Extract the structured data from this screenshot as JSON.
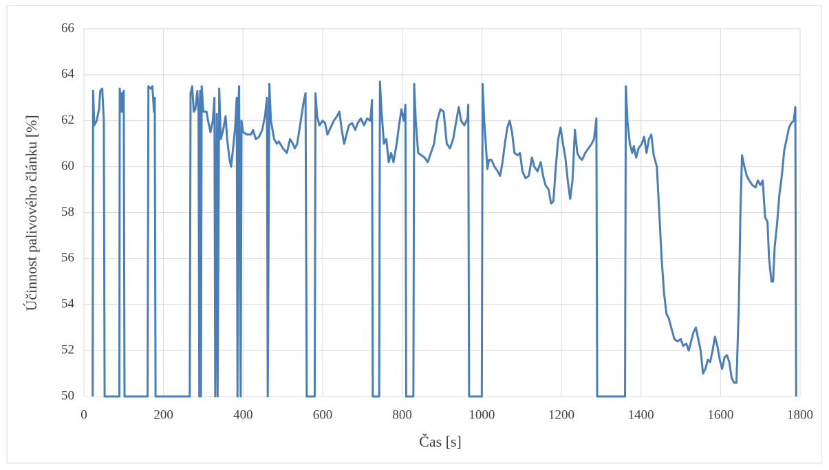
{
  "chart_data": {
    "type": "line",
    "xlabel": "Čas [s]",
    "ylabel": "Účinnost palivového článku [%]",
    "xlim": [
      0,
      1800
    ],
    "xticks": [
      0,
      200,
      400,
      600,
      800,
      1000,
      1200,
      1400,
      1600,
      1800
    ],
    "ylim": [
      50,
      66
    ],
    "yticks": [
      50,
      52,
      54,
      56,
      58,
      60,
      62,
      64,
      66
    ],
    "grid": true,
    "series": [
      {
        "color": "#4a7ebb",
        "x": [
          22,
          23,
          26,
          32,
          38,
          41,
          46,
          50,
          52,
          89,
          90,
          94,
          96,
          98,
          100,
          102,
          160,
          162,
          168,
          172,
          176,
          178,
          180,
          266,
          268,
          272,
          276,
          280,
          285,
          288,
          290,
          292,
          294,
          296,
          300,
          308,
          312,
          318,
          324,
          328,
          330,
          334,
          336,
          340,
          344,
          350,
          356,
          360,
          366,
          370,
          376,
          380,
          384,
          386,
          388,
          390,
          394,
          396,
          400,
          410,
          420,
          425,
          432,
          440,
          448,
          455,
          460,
          462,
          466,
          470,
          478,
          485,
          490,
          500,
          510,
          518,
          525,
          530,
          536,
          545,
          552,
          557,
          560,
          580,
          582,
          586,
          592,
          600,
          606,
          612,
          620,
          628,
          636,
          642,
          648,
          654,
          660,
          666,
          674,
          682,
          688,
          696,
          704,
          712,
          720,
          724,
          726,
          742,
          744,
          748,
          754,
          760,
          766,
          772,
          778,
          786,
          792,
          798,
          804,
          808,
          810,
          828,
          830,
          834,
          840,
          848,
          856,
          864,
          872,
          880,
          888,
          896,
          904,
          912,
          920,
          928,
          936,
          942,
          948,
          956,
          964,
          966,
          968,
          1000,
          1002,
          1006,
          1010,
          1014,
          1018,
          1024,
          1032,
          1040,
          1046,
          1052,
          1058,
          1064,
          1070,
          1076,
          1082,
          1090,
          1096,
          1102,
          1110,
          1118,
          1126,
          1132,
          1140,
          1148,
          1154,
          1160,
          1168,
          1174,
          1180,
          1186,
          1192,
          1198,
          1204,
          1210,
          1216,
          1222,
          1228,
          1234,
          1240,
          1246,
          1252,
          1260,
          1268,
          1276,
          1282,
          1288,
          1290,
          1360,
          1362,
          1366,
          1372,
          1378,
          1382,
          1388,
          1394,
          1402,
          1408,
          1414,
          1420,
          1426,
          1432,
          1440,
          1446,
          1452,
          1458,
          1464,
          1470,
          1476,
          1484,
          1492,
          1500,
          1506,
          1514,
          1520,
          1526,
          1532,
          1538,
          1544,
          1550,
          1556,
          1562,
          1568,
          1574,
          1580,
          1586,
          1592,
          1598,
          1604,
          1610,
          1616,
          1622,
          1628,
          1634,
          1640,
          1646,
          1650,
          1654,
          1660,
          1666,
          1672,
          1680,
          1688,
          1694,
          1700,
          1706,
          1712,
          1718,
          1722,
          1728,
          1732,
          1736,
          1742,
          1748,
          1754,
          1760,
          1766,
          1772,
          1778,
          1784,
          1788,
          1790
        ],
        "values": [
          50,
          63.3,
          61.8,
          62,
          62.5,
          63.3,
          63.4,
          62,
          50,
          50,
          63.4,
          62.4,
          63.2,
          62.4,
          63.3,
          50,
          50,
          63.5,
          63.4,
          63.5,
          62.4,
          63,
          50,
          50,
          63.2,
          63.5,
          62.4,
          62.5,
          63.3,
          62.4,
          50,
          63.3,
          50,
          63.5,
          62.4,
          62.4,
          62,
          61.5,
          62,
          63,
          50,
          62.3,
          50,
          63.4,
          61.2,
          61.6,
          62.2,
          61.2,
          60.3,
          60,
          61,
          61.7,
          63,
          50,
          62.5,
          63.5,
          50,
          62,
          61.5,
          61.4,
          61.4,
          61.6,
          61.2,
          61.3,
          61.6,
          62.2,
          63,
          50,
          63.6,
          62,
          61.2,
          61,
          61.1,
          60.8,
          60.6,
          61.2,
          61,
          60.8,
          61,
          62,
          62.8,
          63.2,
          50,
          50,
          63.2,
          62.2,
          61.8,
          62,
          61.9,
          61.4,
          61.7,
          62,
          62.2,
          62.4,
          61.6,
          61,
          61.4,
          61.8,
          61.9,
          61.6,
          61.9,
          62.1,
          61.8,
          62.1,
          62,
          62.9,
          50,
          50,
          63.7,
          62.4,
          61,
          61.2,
          60.2,
          60.6,
          60.2,
          61,
          61.8,
          62.5,
          62,
          62.7,
          50,
          50,
          63.6,
          62,
          60.6,
          60.5,
          60.4,
          60.2,
          60.6,
          61,
          62,
          62.5,
          62.4,
          61,
          60.8,
          61.2,
          62,
          62.6,
          62,
          61.8,
          62.1,
          62.7,
          50,
          50,
          63.6,
          62,
          61,
          59.9,
          60.3,
          60.3,
          60,
          59.8,
          59.6,
          60.2,
          61,
          61.7,
          62,
          61.5,
          60.6,
          60.5,
          60.6,
          59.8,
          59.5,
          59.6,
          60.4,
          60,
          59.8,
          60.2,
          59.6,
          59.2,
          59,
          58.4,
          58.5,
          60,
          61.2,
          61.7,
          61,
          60.4,
          59.4,
          58.6,
          59.4,
          61.6,
          60.6,
          60.4,
          60.3,
          60.6,
          60.8,
          61,
          61.2,
          62.1,
          50,
          50,
          63.5,
          62,
          61,
          60.6,
          60.9,
          60.4,
          60.8,
          61,
          61.3,
          60.6,
          61.2,
          61.4,
          60.5,
          60,
          58,
          56,
          54.5,
          53.6,
          53.4,
          53,
          52.5,
          52.4,
          52.5,
          52.2,
          52.3,
          52,
          52.4,
          52.8,
          53,
          52.5,
          52,
          51,
          51.2,
          51.6,
          51.5,
          52,
          52.6,
          52.2,
          51.6,
          51.2,
          51.7,
          51.8,
          51.5,
          50.8,
          50.6,
          50.6,
          54,
          58,
          60.5,
          60,
          59.6,
          59.4,
          59.2,
          59.1,
          59.4,
          59.2,
          59.4,
          57.8,
          57.6,
          56,
          55,
          55,
          56.5,
          57.5,
          58.8,
          59.6,
          60.7,
          61.2,
          61.7,
          61.9,
          62,
          62.6,
          50
        ]
      }
    ]
  }
}
